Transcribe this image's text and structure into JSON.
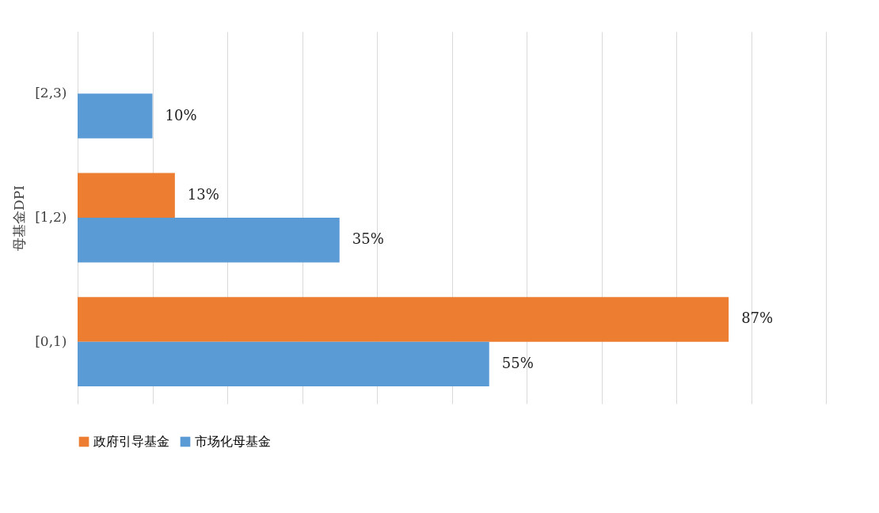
{
  "chart_data": {
    "type": "bar",
    "orientation": "horizontal",
    "ylabel": "母基金DPI",
    "categories": [
      "[2,3)",
      "[1,2)",
      "[0,1)"
    ],
    "series": [
      {
        "name": "政府引导基金",
        "color": "#ed7d31",
        "values": [
          null,
          13,
          87
        ],
        "value_labels": [
          null,
          "13%",
          "87%"
        ]
      },
      {
        "name": "市场化母基金",
        "color": "#5b9bd5",
        "values": [
          10,
          35,
          55
        ],
        "value_labels": [
          "10%",
          "35%",
          "55%"
        ]
      }
    ],
    "xlim": [
      0,
      100
    ],
    "xticks": [
      {
        "value": 0,
        "label": null
      },
      {
        "value": 10,
        "label": null
      },
      {
        "value": 20,
        "label": null
      },
      {
        "value": 30,
        "label": null
      },
      {
        "value": 40,
        "label": null
      },
      {
        "value": 50,
        "label": null
      },
      {
        "value": 60,
        "label": null
      },
      {
        "value": 70,
        "label": null
      },
      {
        "value": 80,
        "label": null
      },
      {
        "value": 90,
        "label": null
      },
      {
        "value": 100,
        "label": null
      }
    ],
    "grid": "x",
    "legend": "bottom",
    "tick_labels": "y"
  }
}
